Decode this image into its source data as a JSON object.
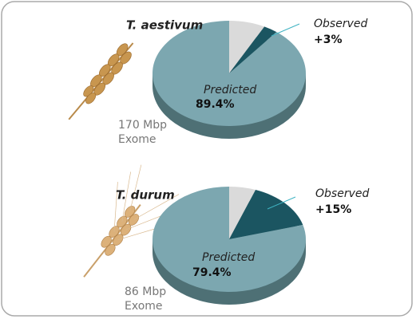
{
  "chart_data": [
    {
      "type": "pie",
      "title": "T. aestivum",
      "annotations": [
        "170 Mbp",
        "Exome"
      ],
      "categories": [
        null,
        "Observed",
        "Predicted"
      ],
      "values": [
        7.6,
        3,
        89.4
      ],
      "value_labels": [
        null,
        "+3%",
        "89.4%"
      ],
      "colors": [
        "#dadada",
        "#1b5561",
        "#7ca7b0"
      ],
      "side_color": "#4e7075"
    },
    {
      "type": "pie",
      "title": "T. durum",
      "annotations": [
        "86 Mbp",
        "Exome"
      ],
      "categories": [
        null,
        "Observed",
        "Predicted"
      ],
      "values": [
        5.6,
        15,
        79.4
      ],
      "value_labels": [
        null,
        "+15%",
        "79.4%"
      ],
      "colors": [
        "#dadada",
        "#1b5561",
        "#7ca7b0"
      ],
      "side_color": "#4e7075"
    }
  ]
}
